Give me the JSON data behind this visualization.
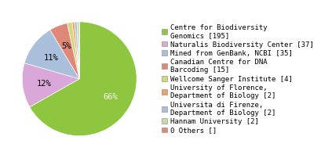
{
  "labels": [
    "Centre for Biodiversity\nGenomics [195]",
    "Naturalis Biodiversity Center [37]",
    "Mined from GenBank, NCBI [35]",
    "Canadian Centre for DNA\nBarcoding [15]",
    "Wellcome Sanger Institute [4]",
    "University of Florence,\nDepartment of Biology [2]",
    "Universita di Firenze,\nDepartment of Biology [2]",
    "Hannam University [2]",
    "0 Others []"
  ],
  "values": [
    195,
    37,
    35,
    15,
    4,
    2,
    2,
    2,
    0.001
  ],
  "colors": [
    "#8ec63f",
    "#d9a8d9",
    "#aabfdc",
    "#e08878",
    "#d4d878",
    "#f0a060",
    "#aabfdc",
    "#c5dc9a",
    "#e08878"
  ],
  "pct_labels": [
    "66%",
    "12%",
    "11%",
    "5%",
    "",
    "",
    "",
    "",
    ""
  ],
  "startangle": 90,
  "background_color": "#ffffff",
  "font_family": "monospace",
  "legend_fontsize": 6.5,
  "pct_fontsize": 7.5
}
